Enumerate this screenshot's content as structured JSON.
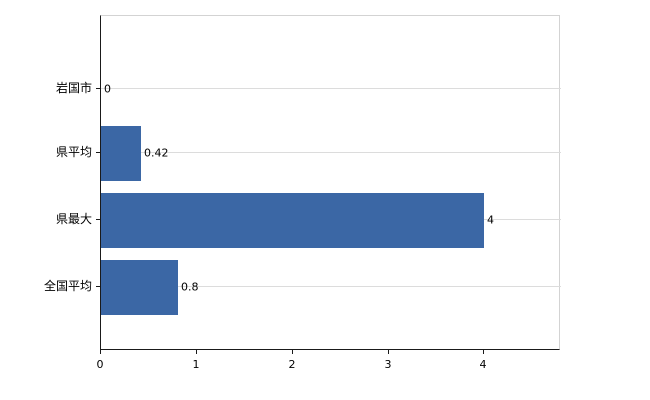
{
  "chart_data": {
    "type": "bar",
    "orientation": "horizontal",
    "title": "",
    "xlabel": "",
    "ylabel": "",
    "categories": [
      "岩国市",
      "県平均",
      "県最大",
      "全国平均"
    ],
    "values": [
      0,
      0.42,
      4,
      0.8
    ],
    "value_labels": [
      "0",
      "0.42",
      "4",
      "0.8"
    ],
    "xlim": [
      0,
      4.8
    ],
    "x_ticks": [
      "0",
      "1",
      "2",
      "3",
      "4"
    ],
    "x_tick_values": [
      0,
      1,
      2,
      3,
      4
    ],
    "grid": true,
    "legend": "none",
    "colors": {
      "bar": "#3b67a5",
      "axis": "#1a1a1a",
      "gridline": "#dcdcdc",
      "frame": "#d3d3d3",
      "text": "#000000",
      "background": "#ffffff"
    }
  }
}
